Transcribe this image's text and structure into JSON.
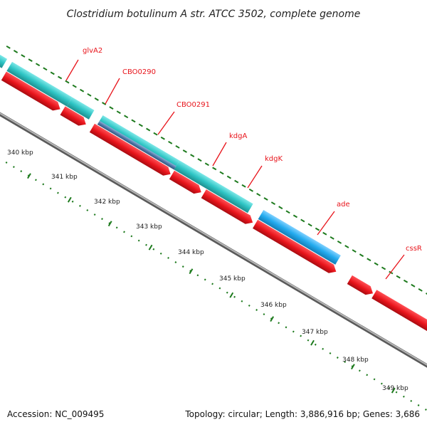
{
  "title": "Clostridium botulinum A str. ATCC 3502, complete genome",
  "footer": {
    "accession": "Accession: NC_009495",
    "summary": "Topology: circular; Length: 3,886,916 bp; Genes: 3,686"
  },
  "gene_labels": [
    "glvA2",
    "CBO0290",
    "CBO0291",
    "kdgA",
    "kdgK",
    "ade",
    "cssR"
  ],
  "tick_labels": [
    "340 kbp",
    "341 kbp",
    "342 kbp",
    "343 kbp",
    "344 kbp",
    "345 kbp",
    "346 kbp",
    "347 kbp",
    "348 kbp",
    "349 kbp"
  ],
  "colors": {
    "cds_red": "#e8141b",
    "cds_red_dark": "#a80d12",
    "teal": "#2ec4c4",
    "teal_dark": "#1e8e8e",
    "blue": "#22aaee",
    "slate": "#4f78a8",
    "backbone": "#8c8c8c",
    "tick_green": "#1d7a1d",
    "label_red": "#e8141b"
  }
}
